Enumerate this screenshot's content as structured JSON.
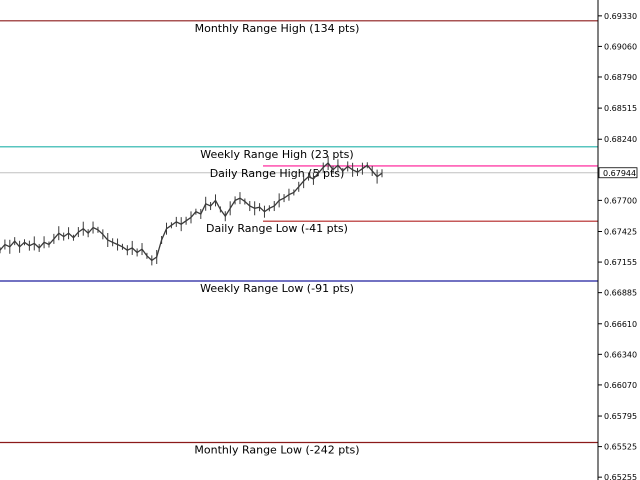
{
  "chart_data": {
    "type": "line",
    "ylim": [
      0.6523,
      0.6947
    ],
    "y_ticks": [
      "0.69330",
      "0.69060",
      "0.68790",
      "0.68515",
      "0.68240",
      "0.67944",
      "0.67700",
      "0.67425",
      "0.67155",
      "0.66885",
      "0.66610",
      "0.66340",
      "0.66070",
      "0.65795",
      "0.65525",
      "0.65255"
    ],
    "y_tick_values": [
      0.6933,
      0.6906,
      0.6879,
      0.68515,
      0.6824,
      0.677,
      0.67425,
      0.67155,
      0.66885,
      0.6661,
      0.6634,
      0.6607,
      0.65795,
      0.65525,
      0.65255
    ],
    "current_price": {
      "label": "0.67944",
      "value": 0.67944,
      "line_color": "#c0c0c0"
    },
    "levels": [
      {
        "name": "Monthly Range High (134 pts)",
        "value": 0.69286,
        "color": "#8b1a1a",
        "scope": "full"
      },
      {
        "name": "Weekly Range High (23 pts)",
        "value": 0.68173,
        "color": "#20b2aa",
        "scope": "full"
      },
      {
        "name": "Daily Range High (5 pts)",
        "value": 0.68004,
        "color": "#ff1493",
        "scope": "partial"
      },
      {
        "name": "Daily Range Low (-41 pts)",
        "value": 0.67516,
        "color": "#b22222",
        "scope": "partial"
      },
      {
        "name": "Weekly Range Low (-91 pts)",
        "value": 0.66988,
        "color": "#1e1e9e",
        "scope": "full"
      },
      {
        "name": "Monthly Range Low (-242 pts)",
        "value": 0.65561,
        "color": "#8b1a1a",
        "scope": "full"
      }
    ],
    "series": [
      {
        "values": [
          0.6726,
          0.6731,
          0.6729,
          0.6734,
          0.6729,
          0.6733,
          0.673,
          0.6732,
          0.6728,
          0.6733,
          0.6731,
          0.6736,
          0.6741,
          0.6738,
          0.6741,
          0.6737,
          0.6742,
          0.6745,
          0.6741,
          0.6746,
          0.6744,
          0.674,
          0.6735,
          0.6733,
          0.6731,
          0.6729,
          0.6726,
          0.6728,
          0.6724,
          0.6727,
          0.6721,
          0.6717,
          0.672,
          0.6735,
          0.6745,
          0.6748,
          0.6751,
          0.6749,
          0.6752,
          0.6755,
          0.676,
          0.6758,
          0.6767,
          0.6765,
          0.677,
          0.6762,
          0.6756,
          0.6763,
          0.677,
          0.6772,
          0.6769,
          0.6765,
          0.6763,
          0.6764,
          0.676,
          0.6763,
          0.6765,
          0.677,
          0.6772,
          0.6775,
          0.6777,
          0.6782,
          0.6787,
          0.6791,
          0.6789,
          0.6794,
          0.6799,
          0.6803,
          0.6797,
          0.6801,
          0.6796,
          0.68,
          0.6797,
          0.6795,
          0.6798,
          0.6801,
          0.6796,
          0.6791,
          0.6794
        ]
      }
    ],
    "grid": false,
    "axis_side": "right"
  }
}
